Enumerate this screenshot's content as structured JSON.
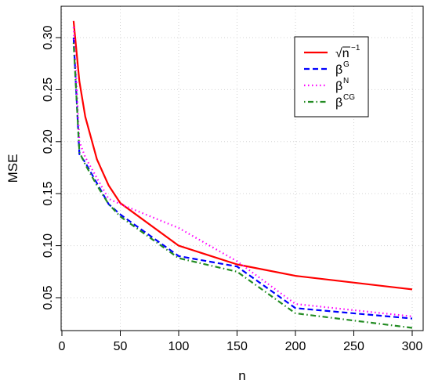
{
  "chart_data": {
    "type": "line",
    "xlabel": "n",
    "ylabel": "MSE",
    "xlim": [
      0,
      300
    ],
    "ylim": [
      0.02,
      0.32
    ],
    "x_ticks": [
      0,
      50,
      100,
      150,
      200,
      250,
      300
    ],
    "y_ticks": [
      0.05,
      0.1,
      0.15,
      0.2,
      0.25,
      0.3
    ],
    "x_tick_labels": [
      "0",
      "50",
      "100",
      "150",
      "200",
      "250",
      "300"
    ],
    "y_tick_labels": [
      "0.05",
      "0.10",
      "0.15",
      "0.20",
      "0.25",
      "0.30"
    ],
    "grid": true,
    "legend_position": "top-right",
    "series": [
      {
        "name": "√n⁻¹",
        "legend_base": "√n",
        "legend_sup": "−1",
        "color": "#ff0000",
        "dash": "solid",
        "x": [
          10,
          15,
          20,
          30,
          40,
          50,
          100,
          150,
          200,
          300
        ],
        "y": [
          0.316,
          0.258,
          0.224,
          0.183,
          0.158,
          0.141,
          0.1,
          0.082,
          0.071,
          0.058
        ]
      },
      {
        "name": "βG",
        "legend_base": "β",
        "legend_sup": "G",
        "color": "#0000ff",
        "dash": "dashed",
        "x": [
          10,
          15,
          20,
          30,
          40,
          50,
          100,
          150,
          200,
          300
        ],
        "y": [
          0.3,
          0.188,
          0.18,
          0.16,
          0.14,
          0.13,
          0.09,
          0.08,
          0.04,
          0.03
        ]
      },
      {
        "name": "βN",
        "legend_base": "β",
        "legend_sup": "N",
        "color": "#ff00ff",
        "dash": "dotted",
        "x": [
          10,
          15,
          20,
          30,
          40,
          50,
          100,
          150,
          200,
          300
        ],
        "y": [
          0.31,
          0.2,
          0.185,
          0.165,
          0.145,
          0.14,
          0.117,
          0.085,
          0.044,
          0.032
        ]
      },
      {
        "name": "βCG",
        "legend_base": "β",
        "legend_sup": "CG",
        "color": "#228b22",
        "dash": "dotdash",
        "x": [
          10,
          15,
          20,
          30,
          40,
          50,
          100,
          150,
          200,
          300
        ],
        "y": [
          0.295,
          0.19,
          0.178,
          0.158,
          0.14,
          0.128,
          0.088,
          0.075,
          0.035,
          0.021
        ]
      }
    ]
  }
}
